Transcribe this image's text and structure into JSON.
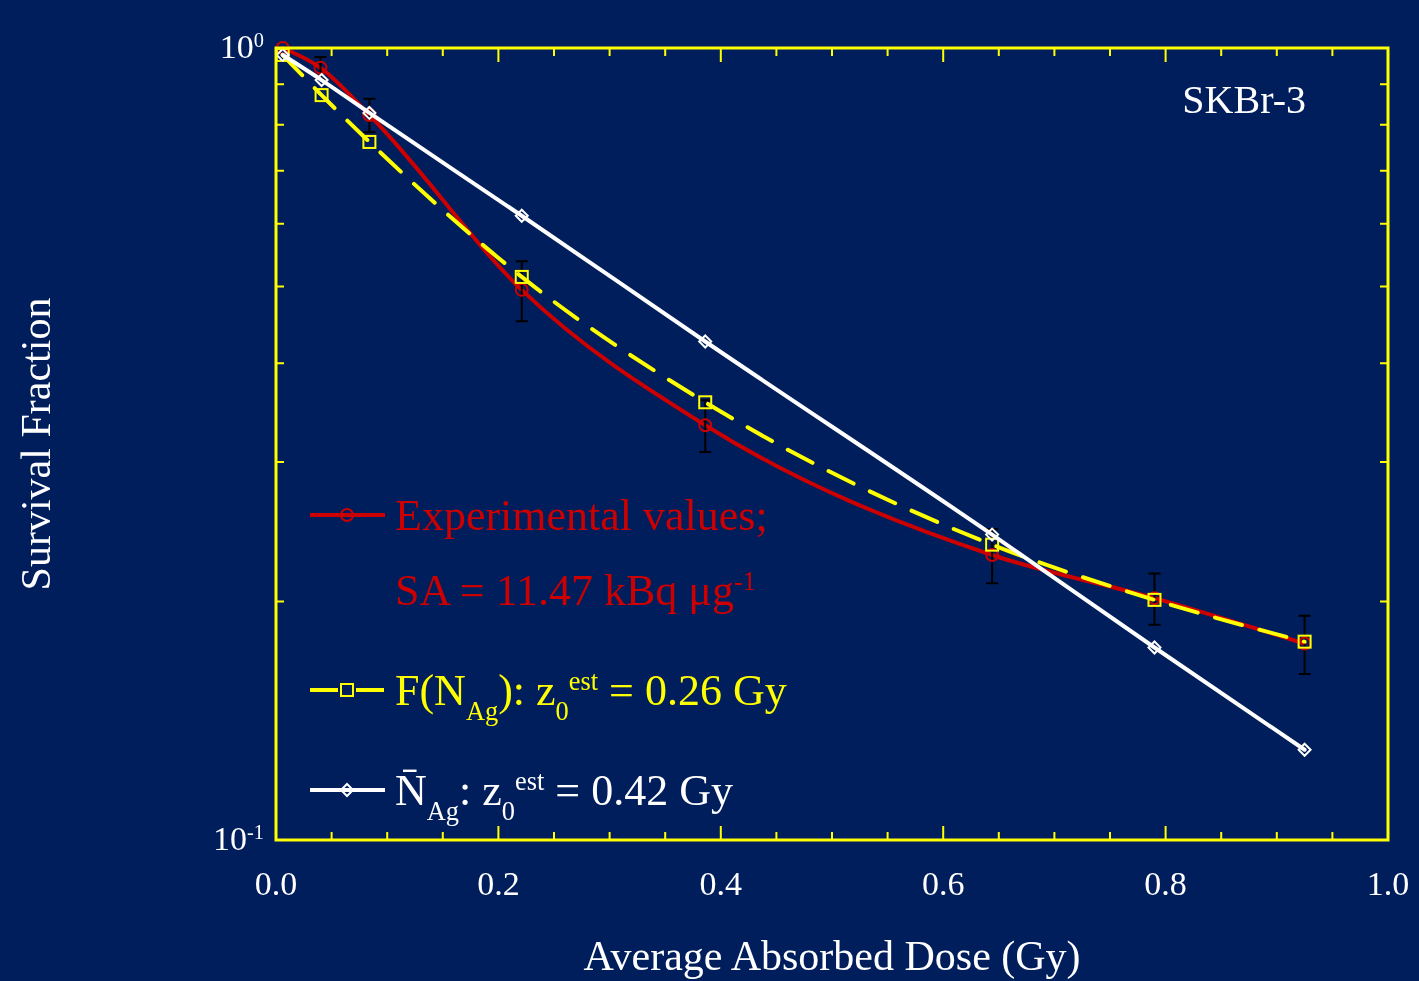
{
  "chart_data": {
    "type": "line",
    "xlabel": "Average Absorbed Dose (Gy)",
    "ylabel": "Survival Fraction",
    "annotations": [
      "SKBr-3"
    ],
    "log": "y",
    "xlim": [
      0,
      1
    ],
    "ylim": [
      0.1,
      1
    ],
    "xticks": [
      {
        "value": 0,
        "label": "0.0"
      },
      {
        "value": 0.05,
        "label": null
      },
      {
        "value": 0.1,
        "label": null
      },
      {
        "value": 0.15,
        "label": null
      },
      {
        "value": 0.2,
        "label": "0.2"
      },
      {
        "value": 0.25,
        "label": null
      },
      {
        "value": 0.3,
        "label": null
      },
      {
        "value": 0.35,
        "label": null
      },
      {
        "value": 0.4,
        "label": "0.4"
      },
      {
        "value": 0.45,
        "label": null
      },
      {
        "value": 0.5,
        "label": null
      },
      {
        "value": 0.55,
        "label": null
      },
      {
        "value": 0.6,
        "label": "0.6"
      },
      {
        "value": 0.65,
        "label": null
      },
      {
        "value": 0.7,
        "label": null
      },
      {
        "value": 0.75,
        "label": null
      },
      {
        "value": 0.8,
        "label": "0.8"
      },
      {
        "value": 0.85,
        "label": null
      },
      {
        "value": 0.9,
        "label": null
      },
      {
        "value": 0.95,
        "label": null
      },
      {
        "value": 1,
        "label": "1.0"
      }
    ],
    "yticks": [
      {
        "value": 0.1,
        "label": "10$^{-1}$"
      },
      {
        "value": 0.2,
        "label": null
      },
      {
        "value": 0.3,
        "label": null
      },
      {
        "value": 0.4,
        "label": null
      },
      {
        "value": 0.5,
        "label": null
      },
      {
        "value": 0.6,
        "label": null
      },
      {
        "value": 0.7,
        "label": null
      },
      {
        "value": 0.8,
        "label": null
      },
      {
        "value": 0.9,
        "label": null
      },
      {
        "value": 1,
        "label": "10$^{0}$"
      }
    ],
    "grid": false,
    "legend": "bottom left",
    "series": [
      {
        "name": "Experimental values;\nSA = 11.47 kBq μg$^{-1}$",
        "color": "#cc0000",
        "marker": "circle",
        "line_style": "solid",
        "x": [
          0.006,
          0.04,
          0.084,
          0.221,
          0.386,
          0.644,
          0.79,
          0.925
        ],
        "values": [
          1.0,
          0.944,
          0.823,
          0.495,
          0.334,
          0.229,
          0.202,
          0.177
        ],
        "errors": [
          null,
          0.03,
          0.04,
          0.043,
          0.025,
          0.018,
          0.015,
          0.015
        ]
      },
      {
        "name": "F(N$_{Ag}$):  z$_{0}$$^{est}$ = 0.26 Gy",
        "color": "#ffff00",
        "marker": "square",
        "line_style": "dashed",
        "x": [
          0.006,
          0.041,
          0.084,
          0.221,
          0.386,
          0.644,
          0.79,
          0.925
        ],
        "values": [
          0.98,
          0.872,
          0.761,
          0.514,
          0.357,
          0.236,
          0.201,
          0.178
        ]
      },
      {
        "name": "N̄$_{Ag}$: z$_{0}$$^{est}$ = 0.42 Gy",
        "color": "#ffffff",
        "marker": "diamond",
        "line_style": "solid",
        "x": [
          0.006,
          0.041,
          0.084,
          0.221,
          0.386,
          0.644,
          0.79,
          0.925
        ],
        "values": [
          0.98,
          0.911,
          0.828,
          0.614,
          0.426,
          0.243,
          0.175,
          0.13
        ]
      }
    ]
  }
}
